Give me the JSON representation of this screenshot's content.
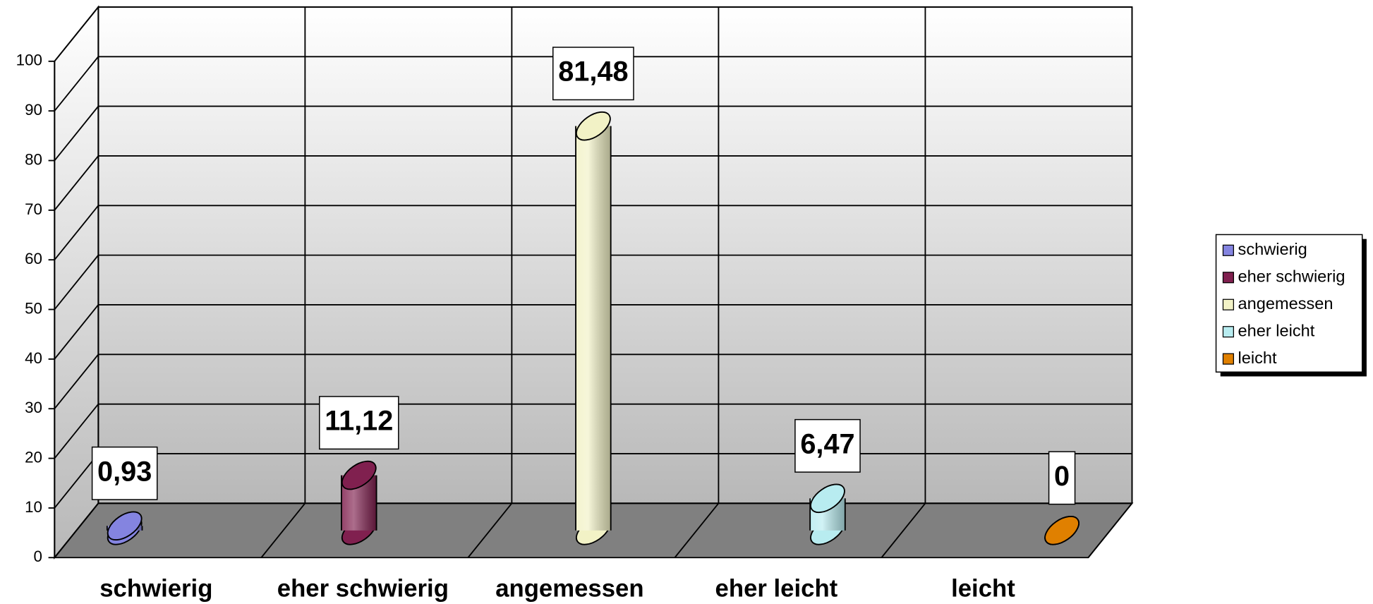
{
  "chart_data": {
    "type": "bar",
    "categories": [
      "schwierig",
      "eher schwierig",
      "angemessen",
      "eher leicht",
      "leicht"
    ],
    "values": [
      0.93,
      11.12,
      81.48,
      6.47,
      0
    ],
    "value_labels": [
      "0,93",
      "11,12",
      "81,48",
      "6,47",
      "0"
    ],
    "colors": [
      "#8484e0",
      "#80204f",
      "#f2f2c6",
      "#b8ecf0",
      "#e08000"
    ],
    "ylim": [
      0,
      100
    ],
    "yticks": [
      0,
      10,
      20,
      30,
      40,
      50,
      60,
      70,
      80,
      90,
      100
    ],
    "grid": true,
    "legend": "right"
  }
}
